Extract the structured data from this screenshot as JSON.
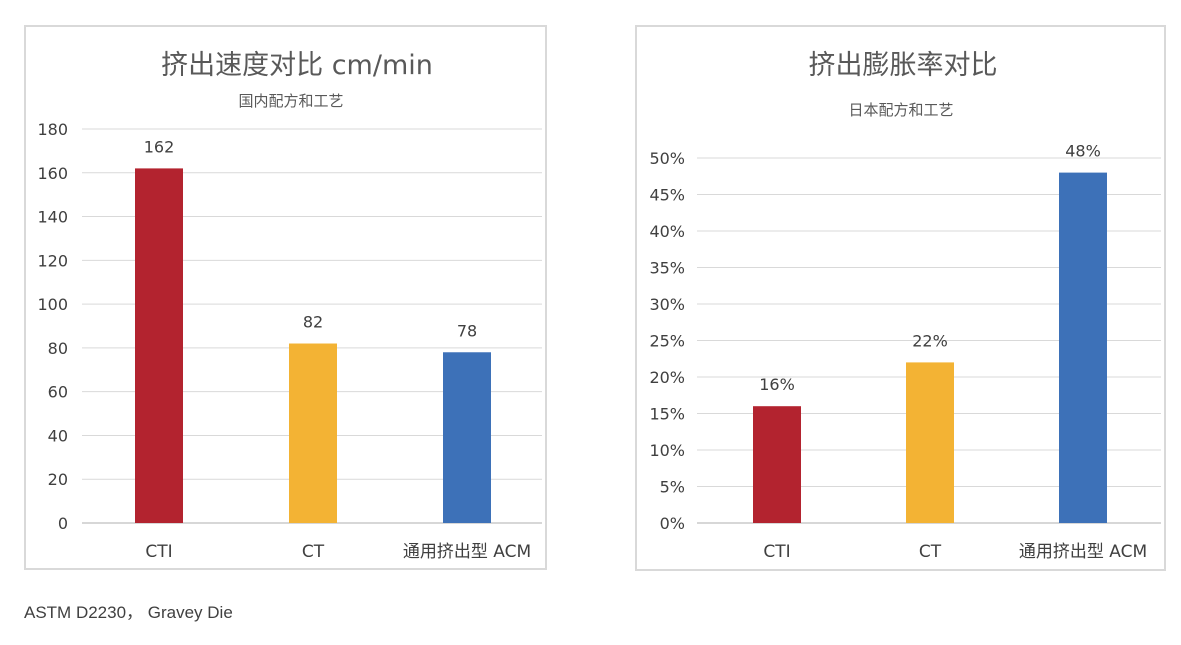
{
  "chart_data": [
    {
      "type": "bar",
      "title": "挤出速度对比 cm/min",
      "subtitle": "国内配方和工艺",
      "categories": [
        "CTI",
        "CT",
        "通用挤出型 ACM"
      ],
      "values": [
        162,
        82,
        78
      ],
      "data_labels": [
        "162",
        "82",
        "78"
      ],
      "bar_colors": [
        "#b3232f",
        "#f3b334",
        "#3d71b8"
      ],
      "ylim": [
        0,
        180
      ],
      "yticks": [
        0,
        20,
        40,
        60,
        80,
        100,
        120,
        140,
        160,
        180
      ],
      "ytick_labels": [
        "0",
        "20",
        "40",
        "60",
        "80",
        "100",
        "120",
        "140",
        "160",
        "180"
      ],
      "grid": true,
      "legend": "none"
    },
    {
      "type": "bar",
      "title": "挤出膨胀率对比",
      "subtitle": "日本配方和工艺",
      "categories": [
        "CTI",
        "CT",
        "通用挤出型 ACM"
      ],
      "values": [
        0.16,
        0.22,
        0.48
      ],
      "data_labels": [
        "16%",
        "22%",
        "48%"
      ],
      "bar_colors": [
        "#b3232f",
        "#f3b334",
        "#3d71b8"
      ],
      "ylim": [
        0,
        0.5
      ],
      "yticks": [
        0,
        0.05,
        0.1,
        0.15,
        0.2,
        0.25,
        0.3,
        0.35,
        0.4,
        0.45,
        0.5
      ],
      "ytick_labels": [
        "0%",
        "5%",
        "10%",
        "15%",
        "20%",
        "25%",
        "30%",
        "35%",
        "40%",
        "45%",
        "50%"
      ],
      "grid": true,
      "legend": "none"
    }
  ],
  "footnote": "ASTM D2230， Gravey Die"
}
